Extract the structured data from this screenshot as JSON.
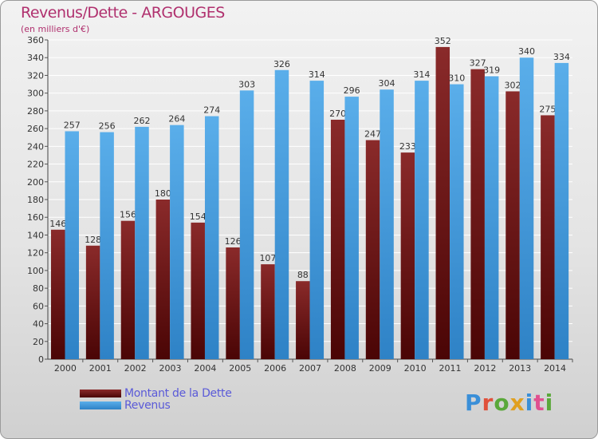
{
  "title": "Revenus/Dette - ARGOUGES",
  "subtitle": "(en milliers d'€)",
  "brand": "Proxiti",
  "colors": {
    "dette": "#7a1c1c",
    "revenus": "#4aa3e6",
    "title": "#b0306e",
    "legend": "#5a5ad8"
  },
  "chart_data": {
    "type": "bar",
    "categories": [
      "2000",
      "2001",
      "2002",
      "2003",
      "2004",
      "2005",
      "2006",
      "2007",
      "2008",
      "2009",
      "2010",
      "2011",
      "2012",
      "2013",
      "2014"
    ],
    "series": [
      {
        "name": "Montant de la Dette",
        "values": [
          146,
          128,
          156,
          180,
          154,
          126,
          107,
          88,
          270,
          247,
          233,
          352,
          327,
          302,
          275
        ]
      },
      {
        "name": "Revenus",
        "values": [
          257,
          256,
          262,
          264,
          274,
          303,
          326,
          314,
          296,
          304,
          314,
          310,
          319,
          340,
          334
        ]
      }
    ],
    "ylim": [
      0,
      360
    ],
    "yticks": [
      0,
      20,
      40,
      60,
      80,
      100,
      120,
      140,
      160,
      180,
      200,
      220,
      240,
      260,
      280,
      300,
      320,
      340,
      360
    ],
    "grid": true,
    "legend": "bottom-left"
  }
}
